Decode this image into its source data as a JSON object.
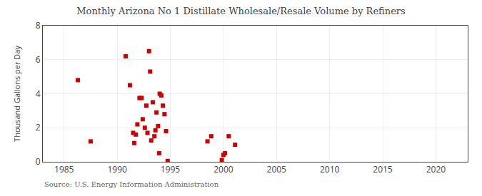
{
  "chart_data": {
    "type": "scatter",
    "title": "Monthly Arizona No 1 Distillate Wholesale/Resale Volume by Refiners",
    "ylabel": "Thousand Gallons per Day",
    "annotations": [
      "Source: U.S. Energy Information Administration"
    ],
    "color": "#cc0000",
    "marker": "square",
    "grid": true,
    "xlim": [
      1983,
      2023
    ],
    "ylim": [
      0,
      8
    ],
    "xticks": [
      1985,
      1990,
      1995,
      2000,
      2005,
      2010,
      2015,
      2020
    ],
    "yticks": [
      0,
      2,
      4,
      6,
      8
    ],
    "x": [
      1986.3,
      1987.5,
      1990.8,
      1991.2,
      1991.5,
      1991.6,
      1991.75,
      1991.9,
      1992.1,
      1992.3,
      1992.4,
      1992.6,
      1992.75,
      1992.85,
      1993.0,
      1993.1,
      1993.2,
      1993.35,
      1993.5,
      1993.6,
      1993.7,
      1993.85,
      1993.95,
      1994.0,
      1994.15,
      1994.3,
      1994.45,
      1994.6,
      1994.75,
      1998.5,
      1998.85,
      1999.85,
      2000.0,
      2000.15,
      2000.5,
      2001.1
    ],
    "values": [
      4.8,
      1.2,
      6.2,
      4.5,
      1.7,
      1.1,
      1.6,
      2.2,
      3.75,
      3.75,
      2.5,
      2.0,
      3.3,
      1.7,
      6.5,
      5.3,
      1.25,
      3.5,
      1.5,
      1.85,
      2.9,
      2.1,
      0.5,
      4.0,
      3.9,
      3.3,
      2.8,
      1.8,
      0.05,
      1.2,
      1.5,
      0.1,
      0.4,
      0.5,
      1.5,
      1.0
    ]
  }
}
